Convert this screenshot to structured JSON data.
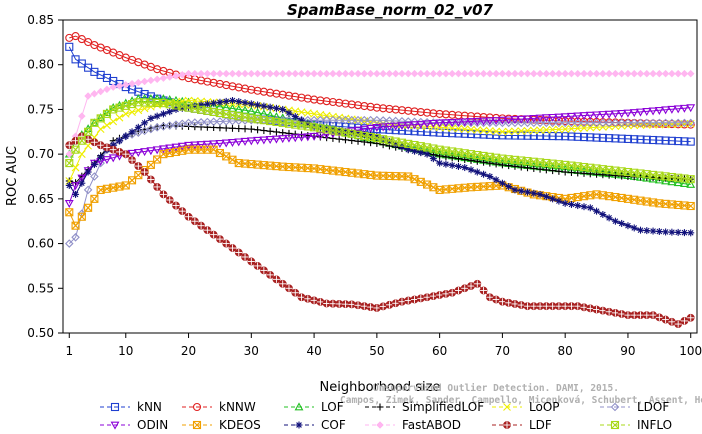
{
  "chart_data": {
    "type": "line",
    "title": "SpamBase_norm_02_v07",
    "xlabel": "Neighborhood size",
    "ylabel": "ROC AUC",
    "xlim": [
      0,
      101
    ],
    "ylim": [
      0.5,
      0.85
    ],
    "x_ticks": [
      1,
      10,
      20,
      30,
      40,
      50,
      60,
      70,
      80,
      90,
      100
    ],
    "y_ticks": [
      0.5,
      0.55,
      0.6,
      0.65,
      0.7,
      0.75,
      0.8,
      0.85
    ],
    "x_tick_labels": [
      "1",
      "10",
      "20",
      "30",
      "40",
      "50",
      "60",
      "70",
      "80",
      "90",
      "100"
    ],
    "y_tick_labels": [
      "0.50",
      "0.55",
      "0.60",
      "0.65",
      "0.70",
      "0.75",
      "0.80",
      "0.85"
    ],
    "grid": false,
    "legend_position": "bottom",
    "watermark": [
      "Campos, Zimek, Sander, Campello, Micenková, Schubert, Assent, Houle",
      "Unsupervised Outlier Detection. DAMI, 2015."
    ],
    "series": [
      {
        "name": "kNN",
        "color": "#1f3fd0",
        "marker": "square",
        "anchors": [
          [
            1,
            0.82
          ],
          [
            2,
            0.806
          ],
          [
            5,
            0.792
          ],
          [
            10,
            0.775
          ],
          [
            15,
            0.762
          ],
          [
            20,
            0.752
          ],
          [
            30,
            0.74
          ],
          [
            40,
            0.733
          ],
          [
            50,
            0.728
          ],
          [
            60,
            0.724
          ],
          [
            70,
            0.721
          ],
          [
            80,
            0.72
          ],
          [
            90,
            0.717
          ],
          [
            100,
            0.714
          ]
        ]
      },
      {
        "name": "kNNW",
        "color": "#e02020",
        "marker": "circle",
        "anchors": [
          [
            1,
            0.83
          ],
          [
            2,
            0.832
          ],
          [
            5,
            0.822
          ],
          [
            10,
            0.808
          ],
          [
            15,
            0.795
          ],
          [
            20,
            0.785
          ],
          [
            30,
            0.772
          ],
          [
            40,
            0.761
          ],
          [
            50,
            0.752
          ],
          [
            60,
            0.745
          ],
          [
            70,
            0.74
          ],
          [
            80,
            0.737
          ],
          [
            90,
            0.735
          ],
          [
            100,
            0.733
          ]
        ]
      },
      {
        "name": "LOF",
        "color": "#22c022",
        "marker": "triangle-up",
        "anchors": [
          [
            1,
            0.7
          ],
          [
            2,
            0.715
          ],
          [
            5,
            0.735
          ],
          [
            8,
            0.752
          ],
          [
            12,
            0.762
          ],
          [
            16,
            0.762
          ],
          [
            20,
            0.758
          ],
          [
            30,
            0.748
          ],
          [
            40,
            0.733
          ],
          [
            50,
            0.715
          ],
          [
            60,
            0.7
          ],
          [
            70,
            0.69
          ],
          [
            80,
            0.683
          ],
          [
            90,
            0.676
          ],
          [
            100,
            0.666
          ]
        ]
      },
      {
        "name": "SimplifiedLOF",
        "color": "#000000",
        "marker": "plus",
        "anchors": [
          [
            1,
            0.67
          ],
          [
            2,
            0.668
          ],
          [
            5,
            0.69
          ],
          [
            8,
            0.715
          ],
          [
            12,
            0.726
          ],
          [
            16,
            0.732
          ],
          [
            20,
            0.731
          ],
          [
            30,
            0.728
          ],
          [
            40,
            0.72
          ],
          [
            50,
            0.712
          ],
          [
            60,
            0.698
          ],
          [
            70,
            0.688
          ],
          [
            80,
            0.68
          ],
          [
            90,
            0.675
          ],
          [
            100,
            0.672
          ]
        ]
      },
      {
        "name": "LoOP",
        "color": "#eeee00",
        "marker": "x",
        "anchors": [
          [
            1,
            0.67
          ],
          [
            3,
            0.7
          ],
          [
            6,
            0.728
          ],
          [
            10,
            0.745
          ],
          [
            15,
            0.755
          ],
          [
            20,
            0.76
          ],
          [
            30,
            0.755
          ],
          [
            40,
            0.745
          ],
          [
            50,
            0.735
          ],
          [
            60,
            0.73
          ],
          [
            70,
            0.725
          ],
          [
            80,
            0.728
          ],
          [
            90,
            0.732
          ],
          [
            100,
            0.734
          ]
        ]
      },
      {
        "name": "LDOF",
        "color": "#9090c8",
        "marker": "diamond",
        "anchors": [
          [
            1,
            0.6
          ],
          [
            2,
            0.607
          ],
          [
            4,
            0.66
          ],
          [
            7,
            0.705
          ],
          [
            10,
            0.72
          ],
          [
            15,
            0.73
          ],
          [
            20,
            0.735
          ],
          [
            30,
            0.738
          ],
          [
            40,
            0.738
          ],
          [
            50,
            0.738
          ],
          [
            60,
            0.735
          ],
          [
            70,
            0.735
          ],
          [
            80,
            0.735
          ],
          [
            90,
            0.735
          ],
          [
            100,
            0.735
          ]
        ]
      },
      {
        "name": "ODIN",
        "color": "#8b00d8",
        "marker": "triangle-down",
        "anchors": [
          [
            1,
            0.645
          ],
          [
            2,
            0.665
          ],
          [
            5,
            0.69
          ],
          [
            10,
            0.7
          ],
          [
            15,
            0.705
          ],
          [
            20,
            0.71
          ],
          [
            25,
            0.712
          ],
          [
            30,
            0.715
          ],
          [
            40,
            0.72
          ],
          [
            50,
            0.73
          ],
          [
            60,
            0.735
          ],
          [
            70,
            0.738
          ],
          [
            80,
            0.742
          ],
          [
            90,
            0.746
          ],
          [
            100,
            0.752
          ]
        ]
      },
      {
        "name": "KDEOS",
        "color": "#f0a000",
        "marker": "square-x",
        "anchors": [
          [
            1,
            0.635
          ],
          [
            2,
            0.62
          ],
          [
            4,
            0.64
          ],
          [
            6,
            0.66
          ],
          [
            10,
            0.665
          ],
          [
            14,
            0.688
          ],
          [
            16,
            0.7
          ],
          [
            20,
            0.705
          ],
          [
            24,
            0.705
          ],
          [
            28,
            0.69
          ],
          [
            35,
            0.686
          ],
          [
            40,
            0.684
          ],
          [
            45,
            0.68
          ],
          [
            50,
            0.676
          ],
          [
            55,
            0.675
          ],
          [
            60,
            0.66
          ],
          [
            65,
            0.663
          ],
          [
            70,
            0.665
          ],
          [
            75,
            0.655
          ],
          [
            80,
            0.65
          ],
          [
            85,
            0.655
          ],
          [
            90,
            0.65
          ],
          [
            95,
            0.645
          ],
          [
            100,
            0.642
          ]
        ]
      },
      {
        "name": "COF",
        "color": "#10107a",
        "marker": "asterisk",
        "anchors": [
          [
            1,
            0.665
          ],
          [
            2,
            0.655
          ],
          [
            4,
            0.68
          ],
          [
            7,
            0.705
          ],
          [
            10,
            0.72
          ],
          [
            14,
            0.74
          ],
          [
            18,
            0.75
          ],
          [
            22,
            0.755
          ],
          [
            27,
            0.76
          ],
          [
            31,
            0.755
          ],
          [
            35,
            0.75
          ],
          [
            40,
            0.73
          ],
          [
            45,
            0.725
          ],
          [
            50,
            0.72
          ],
          [
            55,
            0.705
          ],
          [
            58,
            0.7
          ],
          [
            60,
            0.69
          ],
          [
            64,
            0.685
          ],
          [
            68,
            0.675
          ],
          [
            72,
            0.66
          ],
          [
            76,
            0.655
          ],
          [
            80,
            0.645
          ],
          [
            84,
            0.64
          ],
          [
            88,
            0.625
          ],
          [
            92,
            0.615
          ],
          [
            96,
            0.613
          ],
          [
            100,
            0.612
          ]
        ]
      },
      {
        "name": "FastABOD",
        "color": "#ffb6f0",
        "marker": "diamond-fill",
        "anchors": [
          [
            1,
            0.7
          ],
          [
            2,
            0.72
          ],
          [
            4,
            0.765
          ],
          [
            8,
            0.775
          ],
          [
            12,
            0.78
          ],
          [
            16,
            0.785
          ],
          [
            20,
            0.79
          ],
          [
            30,
            0.79
          ],
          [
            40,
            0.79
          ],
          [
            50,
            0.79
          ],
          [
            60,
            0.79
          ],
          [
            70,
            0.79
          ],
          [
            80,
            0.79
          ],
          [
            90,
            0.79
          ],
          [
            100,
            0.79
          ]
        ]
      },
      {
        "name": "LDF",
        "color": "#a82020",
        "marker": "circle-plus",
        "anchors": [
          [
            1,
            0.71
          ],
          [
            3,
            0.72
          ],
          [
            6,
            0.71
          ],
          [
            10,
            0.7
          ],
          [
            13,
            0.68
          ],
          [
            16,
            0.655
          ],
          [
            20,
            0.63
          ],
          [
            23,
            0.615
          ],
          [
            26,
            0.6
          ],
          [
            30,
            0.58
          ],
          [
            34,
            0.56
          ],
          [
            38,
            0.54
          ],
          [
            42,
            0.533
          ],
          [
            46,
            0.532
          ],
          [
            50,
            0.528
          ],
          [
            54,
            0.535
          ],
          [
            58,
            0.54
          ],
          [
            62,
            0.545
          ],
          [
            66,
            0.555
          ],
          [
            68,
            0.54
          ],
          [
            70,
            0.535
          ],
          [
            74,
            0.53
          ],
          [
            78,
            0.53
          ],
          [
            82,
            0.53
          ],
          [
            86,
            0.525
          ],
          [
            90,
            0.52
          ],
          [
            94,
            0.52
          ],
          [
            98,
            0.51
          ],
          [
            100,
            0.517
          ]
        ]
      },
      {
        "name": "INFLO",
        "color": "#a8d818",
        "marker": "square-x",
        "anchors": [
          [
            1,
            0.69
          ],
          [
            2,
            0.705
          ],
          [
            5,
            0.735
          ],
          [
            8,
            0.75
          ],
          [
            12,
            0.758
          ],
          [
            16,
            0.757
          ],
          [
            20,
            0.752
          ],
          [
            30,
            0.74
          ],
          [
            40,
            0.73
          ],
          [
            50,
            0.718
          ],
          [
            60,
            0.705
          ],
          [
            70,
            0.695
          ],
          [
            80,
            0.688
          ],
          [
            90,
            0.68
          ],
          [
            100,
            0.672
          ]
        ]
      }
    ]
  }
}
